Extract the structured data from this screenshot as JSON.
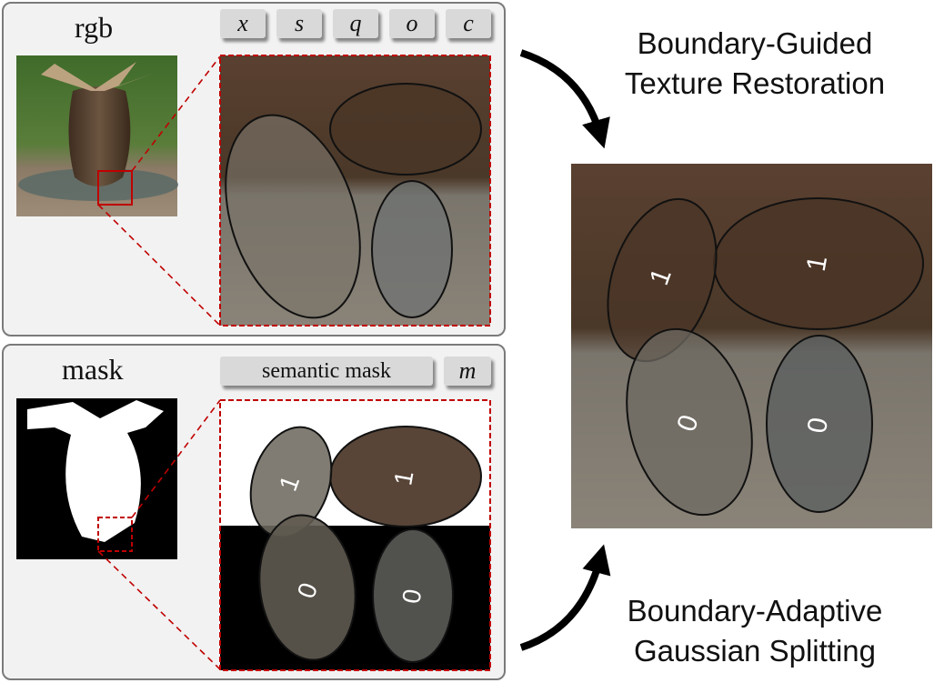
{
  "rgb_panel": {
    "title": "rgb",
    "attributes": [
      "x",
      "s",
      "q",
      "o",
      "c"
    ]
  },
  "mask_panel": {
    "title": "mask",
    "semantic_label": "semantic mask",
    "mask_symbol": "m",
    "gaussian_labels": [
      "1",
      "1",
      "0",
      "0"
    ]
  },
  "result": {
    "gaussian_labels": [
      "1",
      "1",
      "0",
      "0"
    ]
  },
  "captions": {
    "top_line1": "Boundary-Guided",
    "top_line2": "Texture Restoration",
    "bottom_line1": "Boundary-Adaptive",
    "bottom_line2": "Gaussian Splitting"
  },
  "colors": {
    "zoom_border": "#c00000",
    "upper_ellipse": "#4a3526",
    "lower_ellipse": "#6e6e6e",
    "panel_bg": "#f2f2f2"
  }
}
